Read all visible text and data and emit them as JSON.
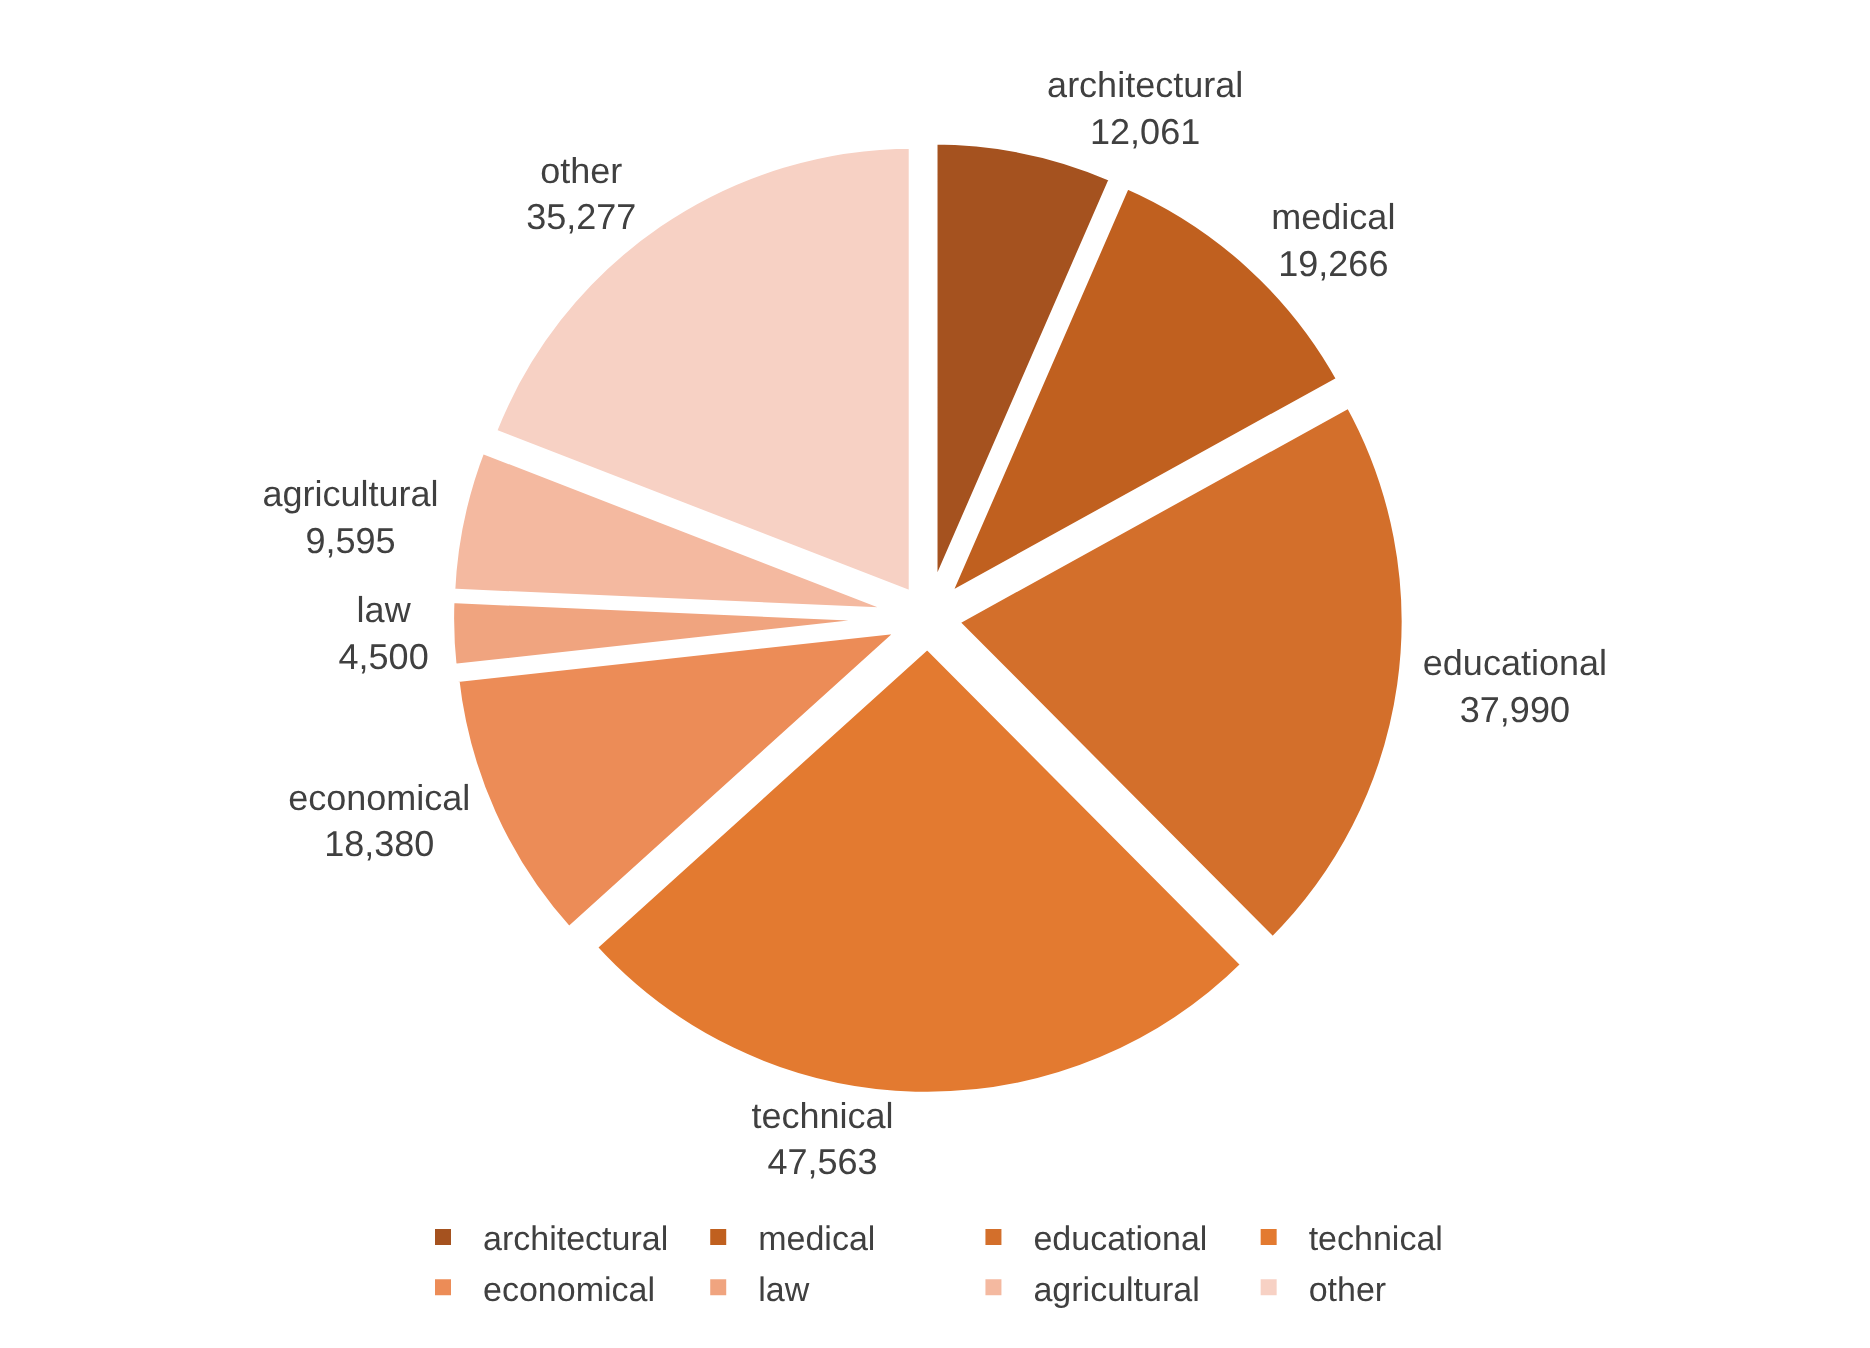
{
  "chart_data": {
    "type": "pie",
    "categories": [
      "architectural",
      "medical",
      "educational",
      "technical",
      "economical",
      "law",
      "agricultural",
      "other"
    ],
    "values": [
      12061,
      19266,
      37990,
      47563,
      18380,
      4500,
      9595,
      35277
    ],
    "colors": [
      "#a5521f",
      "#c0601f",
      "#d36f2b",
      "#e37a30",
      "#ec8c57",
      "#f0a47f",
      "#f4b9a0",
      "#f7d1c4"
    ],
    "value_labels": [
      "12,061",
      "19,266",
      "37,990",
      "47,563",
      "18,380",
      "4,500",
      "9,595",
      "35,277"
    ],
    "legend": "bottom"
  }
}
